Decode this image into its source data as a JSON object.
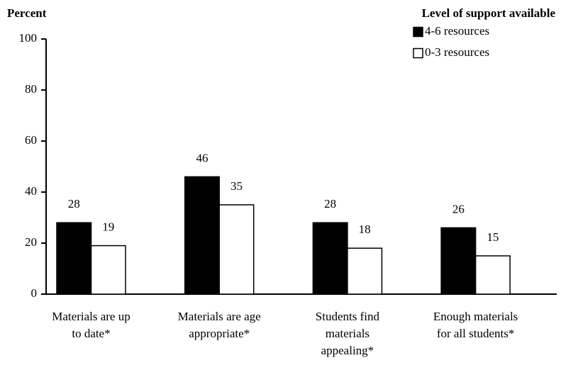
{
  "chart_data": {
    "type": "bar",
    "y_label": "Percent",
    "legend_title": "Level of support available",
    "categories": [
      [
        "Materials are up",
        "to date*"
      ],
      [
        "Materials are age",
        "appropriate*"
      ],
      [
        "Students find",
        "materials",
        "appealing*"
      ],
      [
        "Enough materials",
        "for all students*"
      ]
    ],
    "series": [
      {
        "name": "4-6 resources",
        "color": "#000000",
        "values": [
          28,
          46,
          28,
          26
        ]
      },
      {
        "name": "0-3 resources",
        "color": "#ffffff",
        "values": [
          19,
          35,
          18,
          15
        ]
      }
    ],
    "ylim": [
      0,
      100
    ],
    "yticks": [
      0,
      20,
      40,
      60,
      80,
      100
    ],
    "legend": "top-right"
  }
}
